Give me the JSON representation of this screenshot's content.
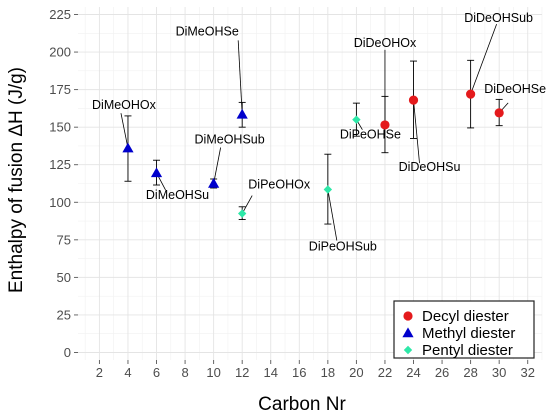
{
  "chart_data": {
    "type": "scatter",
    "title": "",
    "xlabel": "Carbon Nr",
    "ylabel": "Enthalpy of fusion ΔH (J/g)",
    "xlim": [
      0.5,
      33
    ],
    "ylim": [
      -5,
      230
    ],
    "xticks": [
      2,
      4,
      6,
      8,
      10,
      12,
      14,
      16,
      18,
      20,
      22,
      24,
      26,
      28,
      30,
      32
    ],
    "yticks": [
      0,
      25,
      50,
      75,
      100,
      125,
      150,
      175,
      200,
      225
    ],
    "grid": true,
    "legend_position": "bottom-right",
    "series": [
      {
        "name": "Decyl diester",
        "marker": "circle",
        "color": "#e41a1c",
        "points": [
          {
            "label": "DiDeOHOx",
            "x": 22,
            "y": 151.5,
            "err_low": 133,
            "err_high": 170.5
          },
          {
            "label": "DiDeOHSu",
            "x": 24,
            "y": 168,
            "err_low": 142.5,
            "err_high": 194
          },
          {
            "label": "DiDeOHSub",
            "x": 28,
            "y": 172,
            "err_low": 149.5,
            "err_high": 194.5
          },
          {
            "label": "DiDeOHSe",
            "x": 30,
            "y": 159.5,
            "err_low": 151,
            "err_high": 168.5
          }
        ]
      },
      {
        "name": "Methyl diester",
        "marker": "triangle",
        "color": "#0000cc",
        "points": [
          {
            "label": "DiMeOHOx",
            "x": 4,
            "y": 136,
            "err_low": 114,
            "err_high": 157.5
          },
          {
            "label": "DiMeOHSu",
            "x": 6,
            "y": 119.5,
            "err_low": 111.5,
            "err_high": 128
          },
          {
            "label": "DiMeOHSub",
            "x": 10,
            "y": 112.5,
            "err_low": 109.5,
            "err_high": 115.5
          },
          {
            "label": "DiMeOHSe",
            "x": 12,
            "y": 158.5,
            "err_low": 150,
            "err_high": 166.5
          }
        ]
      },
      {
        "name": "Pentyl diester",
        "marker": "diamond",
        "color": "#2ee8a8",
        "points": [
          {
            "label": "DiPeOHOx",
            "x": 12,
            "y": 92.5,
            "err_low": 88.5,
            "err_high": 97
          },
          {
            "label": "DiPeOHSub",
            "x": 18,
            "y": 108.5,
            "err_low": 85.5,
            "err_high": 132
          },
          {
            "label": "DiPeOHSe",
            "x": 20,
            "y": 155,
            "err_low": 144,
            "err_high": 166
          }
        ]
      }
    ]
  }
}
